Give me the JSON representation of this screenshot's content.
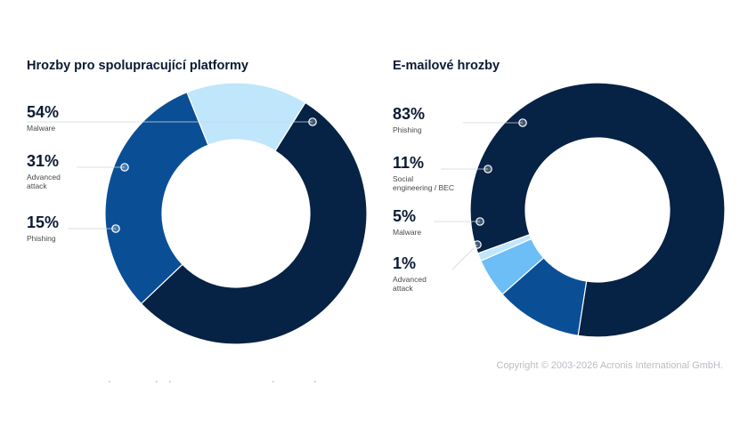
{
  "chart_data": [
    {
      "type": "pie",
      "donut": true,
      "title": "Hrozby pro spolupracující platformy",
      "slices": [
        {
          "pct_label": "54%",
          "name": "Malware",
          "value": 54,
          "color": "#062245"
        },
        {
          "pct_label": "31%",
          "name": "Advanced attack",
          "name_lines": [
            "Advanced",
            "attack"
          ],
          "value": 31,
          "color": "#0a4f96"
        },
        {
          "pct_label": "15%",
          "name": "Phishing",
          "value": 15,
          "color": "#bfe6fb"
        }
      ]
    },
    {
      "type": "pie",
      "donut": true,
      "title": "E-mailové hrozby",
      "slices": [
        {
          "pct_label": "83%",
          "name": "Phishing",
          "value": 83,
          "color": "#062245"
        },
        {
          "pct_label": "11%",
          "name": "Social engineering / BEC",
          "name_lines": [
            "Social",
            "engineering / BEC"
          ],
          "value": 11,
          "color": "#0a4f96"
        },
        {
          "pct_label": "5%",
          "name": "Malware",
          "value": 5,
          "color": "#6dbdf7"
        },
        {
          "pct_label": "1%",
          "name": "Advanced attack",
          "name_lines": [
            "Advanced",
            "attack"
          ],
          "value": 1,
          "color": "#bfe6fb"
        }
      ]
    }
  ],
  "footer": {
    "copyright": "Copyright © 2003-2026 Acronis International GmbH."
  }
}
